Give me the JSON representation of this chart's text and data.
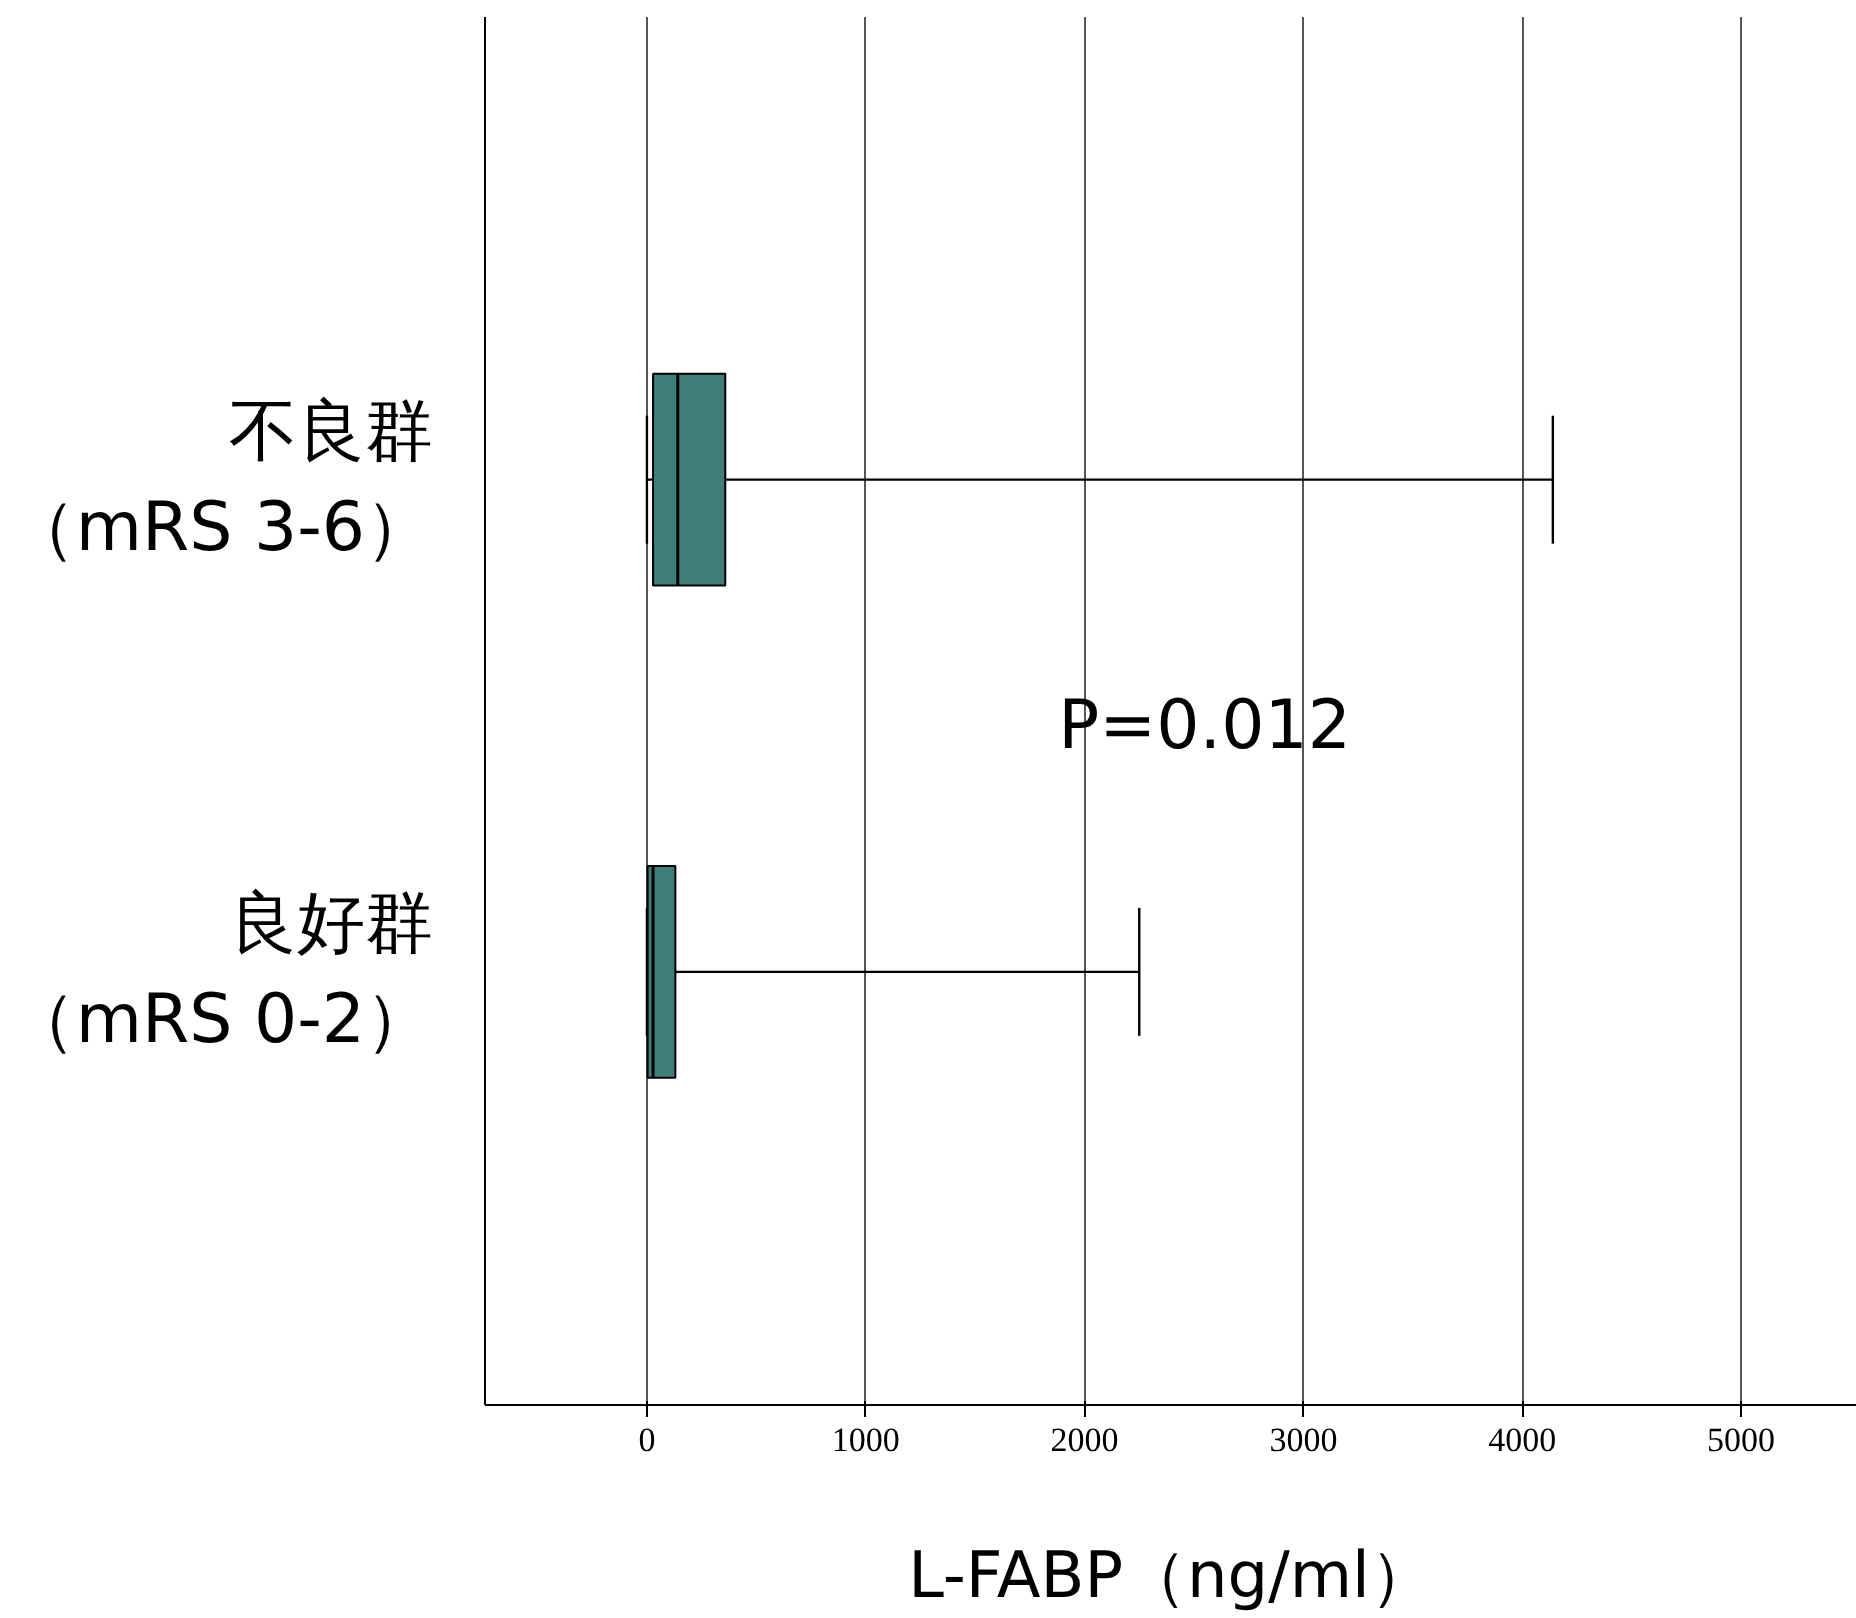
{
  "chart_data": {
    "type": "box",
    "orientation": "horizontal",
    "categories": [
      "不良群（mRS 3-6）",
      "良好群（mRS 0-2）"
    ],
    "series": [
      {
        "color": "#3f7f7a",
        "boxes": [
          {
            "low": 0,
            "q1": 28,
            "median": 141,
            "q3": 358,
            "high": 4140
          },
          {
            "low": 0,
            "q1": 3,
            "median": 28,
            "q3": 130,
            "high": 2250
          }
        ]
      }
    ],
    "xlabel": "L-FABP（ng/ml）",
    "xlim": [
      -740,
      5530
    ],
    "xticks": [
      0,
      1000,
      2000,
      3000,
      4000,
      5000
    ],
    "grid": "x",
    "annotations": [
      "P=0.012"
    ]
  }
}
